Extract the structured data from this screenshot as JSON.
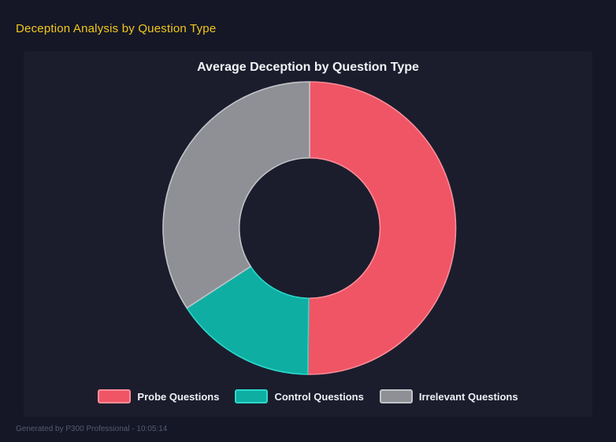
{
  "page": {
    "title": "Deception Analysis by Question Type",
    "footer_note": "Generated by P300 Professional - 10:05:14"
  },
  "theme": {
    "page_background": "#151726",
    "panel_background": "#1B1D2D",
    "page_title_color": "#F2C71D",
    "chart_title_color": "#F2F3F7",
    "legend_text_color": "#EFF0F4",
    "footer_text_color": "#555B70"
  },
  "chart_data": {
    "type": "pie",
    "subtype": "doughnut",
    "title": "Average Deception by Question Type",
    "categories": [
      "Probe Questions",
      "Control Questions",
      "Irrelevant Questions"
    ],
    "values_percent": [
      50.2,
      15.6,
      34.2
    ],
    "slice_colors": [
      "#EF5565",
      "#0FAEA2",
      "#8F9096"
    ],
    "slice_border_colors": [
      "#FF8D99",
      "#2BD9CB",
      "#C2C3C8"
    ],
    "start_angle_deg": 0,
    "direction": "clockwise",
    "outer_radius_px": 186,
    "inner_radius_ratio": 0.48,
    "legend_position": "bottom",
    "grid": false
  }
}
